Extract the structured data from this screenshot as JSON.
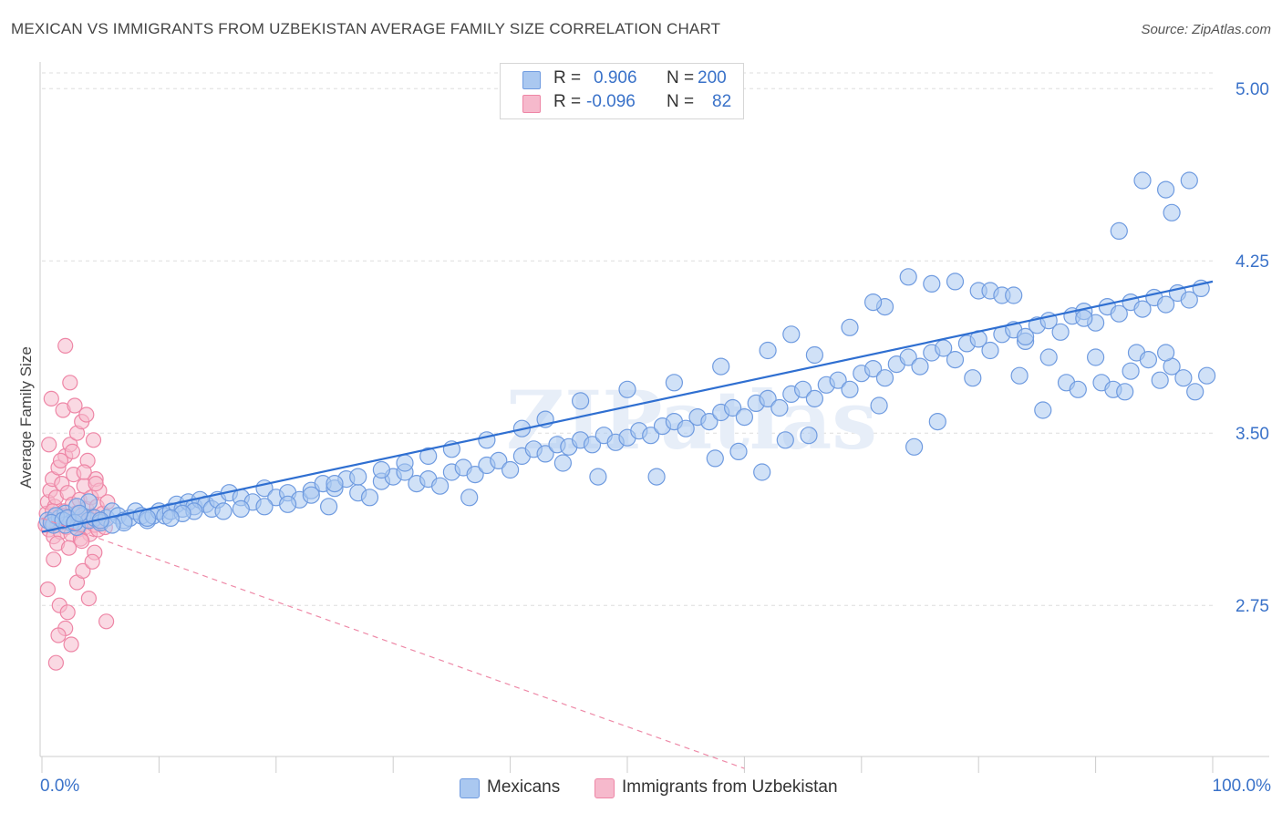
{
  "title": "MEXICAN VS IMMIGRANTS FROM UZBEKISTAN AVERAGE FAMILY SIZE CORRELATION CHART",
  "source": "Source: ZipAtlas.com",
  "watermark": "ZIPatlas",
  "colors": {
    "blue_fill": "#aac8f0",
    "blue_stroke": "#6f9be0",
    "blue_line": "#2f6fd1",
    "pink_fill": "#f6b9cc",
    "pink_stroke": "#ee86a6",
    "pink_line": "#ee8aa8",
    "axis_text": "#3a72c9",
    "grid": "#dddddd"
  },
  "legend": {
    "rows": [
      {
        "r_label": "R =",
        "r_value": "0.906",
        "n_label": "N =",
        "n_value": "200",
        "color": "#aac8f0"
      },
      {
        "r_label": "R =",
        "r_value": "-0.096",
        "n_label": "N =",
        "n_value": "82",
        "color": "#f6b9cc"
      }
    ],
    "series": [
      {
        "label": "Mexicans",
        "color": "#aac8f0"
      },
      {
        "label": "Immigrants from Uzbekistan",
        "color": "#f6b9cc"
      }
    ]
  },
  "chart_data": {
    "type": "scatter",
    "ylabel": "Average Family Size",
    "xlim": [
      0,
      100
    ],
    "ylim": [
      2.1,
      5.1
    ],
    "x_tick_labels": [
      {
        "value": 0,
        "label": "0.0%"
      },
      {
        "value": 100,
        "label": "100.0%"
      }
    ],
    "y_ticks": [
      {
        "value": 2.75,
        "label": "2.75"
      },
      {
        "value": 3.5,
        "label": "3.50"
      },
      {
        "value": 4.25,
        "label": "4.25"
      },
      {
        "value": 5.0,
        "label": "5.00"
      }
    ],
    "grid": true,
    "series": [
      {
        "name": "Mexicans",
        "trend": {
          "x": [
            0,
            100
          ],
          "y": [
            3.07,
            4.16
          ],
          "style": "solid"
        },
        "points": [
          [
            0.5,
            3.12
          ],
          [
            1,
            3.1
          ],
          [
            1.5,
            3.13
          ],
          [
            2,
            3.15
          ],
          [
            2.5,
            3.11
          ],
          [
            3,
            3.09
          ],
          [
            3.5,
            3.14
          ],
          [
            4,
            3.12
          ],
          [
            4.5,
            3.13
          ],
          [
            5,
            3.11
          ],
          [
            5.5,
            3.13
          ],
          [
            6,
            3.16
          ],
          [
            6.5,
            3.14
          ],
          [
            7,
            3.12
          ],
          [
            7.5,
            3.13
          ],
          [
            8,
            3.16
          ],
          [
            8.5,
            3.14
          ],
          [
            9,
            3.12
          ],
          [
            9.5,
            3.14
          ],
          [
            10,
            3.16
          ],
          [
            10.5,
            3.14
          ],
          [
            11,
            3.16
          ],
          [
            11.5,
            3.19
          ],
          [
            12,
            3.17
          ],
          [
            12.5,
            3.2
          ],
          [
            13,
            3.18
          ],
          [
            13.5,
            3.21
          ],
          [
            14,
            3.19
          ],
          [
            14.5,
            3.17
          ],
          [
            15,
            3.21
          ],
          [
            16,
            3.24
          ],
          [
            17,
            3.22
          ],
          [
            18,
            3.2
          ],
          [
            19,
            3.26
          ],
          [
            20,
            3.22
          ],
          [
            21,
            3.24
          ],
          [
            22,
            3.21
          ],
          [
            23,
            3.25
          ],
          [
            24,
            3.28
          ],
          [
            25,
            3.26
          ],
          [
            26,
            3.3
          ],
          [
            27,
            3.24
          ],
          [
            28,
            3.22
          ],
          [
            29,
            3.29
          ],
          [
            30,
            3.31
          ],
          [
            31,
            3.33
          ],
          [
            32,
            3.28
          ],
          [
            33,
            3.3
          ],
          [
            34,
            3.27
          ],
          [
            35,
            3.33
          ],
          [
            36,
            3.35
          ],
          [
            37,
            3.32
          ],
          [
            38,
            3.36
          ],
          [
            39,
            3.38
          ],
          [
            40,
            3.34
          ],
          [
            41,
            3.4
          ],
          [
            42,
            3.43
          ],
          [
            43,
            3.41
          ],
          [
            44,
            3.45
          ],
          [
            45,
            3.44
          ],
          [
            46,
            3.47
          ],
          [
            47,
            3.45
          ],
          [
            48,
            3.49
          ],
          [
            49,
            3.46
          ],
          [
            50,
            3.48
          ],
          [
            51,
            3.51
          ],
          [
            52,
            3.49
          ],
          [
            53,
            3.53
          ],
          [
            54,
            3.55
          ],
          [
            55,
            3.52
          ],
          [
            56,
            3.57
          ],
          [
            57,
            3.55
          ],
          [
            58,
            3.59
          ],
          [
            59,
            3.61
          ],
          [
            60,
            3.57
          ],
          [
            61,
            3.63
          ],
          [
            62,
            3.65
          ],
          [
            63,
            3.61
          ],
          [
            64,
            3.67
          ],
          [
            65,
            3.69
          ],
          [
            66,
            3.65
          ],
          [
            67,
            3.71
          ],
          [
            68,
            3.73
          ],
          [
            69,
            3.69
          ],
          [
            70,
            3.76
          ],
          [
            71,
            3.78
          ],
          [
            72,
            3.74
          ],
          [
            73,
            3.8
          ],
          [
            74,
            3.83
          ],
          [
            75,
            3.79
          ],
          [
            76,
            3.85
          ],
          [
            77,
            3.87
          ],
          [
            78,
            3.82
          ],
          [
            79,
            3.89
          ],
          [
            80,
            3.91
          ],
          [
            81,
            3.86
          ],
          [
            82,
            3.93
          ],
          [
            83,
            3.95
          ],
          [
            84,
            3.9
          ],
          [
            85,
            3.97
          ],
          [
            86,
            3.99
          ],
          [
            87,
            3.94
          ],
          [
            88,
            4.01
          ],
          [
            89,
            4.03
          ],
          [
            90,
            3.98
          ],
          [
            91,
            4.05
          ],
          [
            92,
            4.02
          ],
          [
            93,
            4.07
          ],
          [
            94,
            4.04
          ],
          [
            95,
            4.09
          ],
          [
            96,
            4.06
          ],
          [
            97,
            4.11
          ],
          [
            98,
            4.08
          ],
          [
            99,
            4.13
          ],
          [
            15.5,
            3.16
          ],
          [
            36.5,
            3.22
          ],
          [
            47.5,
            3.31
          ],
          [
            57.5,
            3.39
          ],
          [
            59.5,
            3.42
          ],
          [
            63.5,
            3.47
          ],
          [
            65.5,
            3.49
          ],
          [
            71.5,
            3.62
          ],
          [
            74.5,
            3.44
          ],
          [
            76.5,
            3.55
          ],
          [
            79.5,
            3.74
          ],
          [
            83.5,
            3.75
          ],
          [
            85.5,
            3.6
          ],
          [
            87.5,
            3.72
          ],
          [
            88.5,
            3.69
          ],
          [
            90.5,
            3.72
          ],
          [
            91.5,
            3.69
          ],
          [
            92.5,
            3.68
          ],
          [
            93.5,
            3.85
          ],
          [
            94.5,
            3.82
          ],
          [
            95.5,
            3.73
          ],
          [
            96.5,
            3.79
          ],
          [
            97.5,
            3.74
          ],
          [
            98.5,
            3.68
          ],
          [
            99.5,
            3.75
          ],
          [
            96,
            3.85
          ],
          [
            94,
            4.6
          ],
          [
            96,
            4.56
          ],
          [
            96.5,
            4.46
          ],
          [
            98,
            4.6
          ],
          [
            92,
            4.38
          ],
          [
            89,
            4.0
          ],
          [
            90,
            3.83
          ],
          [
            93,
            3.77
          ],
          [
            84,
            3.92
          ],
          [
            86,
            3.83
          ],
          [
            80,
            4.12
          ],
          [
            81,
            4.12
          ],
          [
            82,
            4.1
          ],
          [
            83,
            4.1
          ],
          [
            74,
            4.18
          ],
          [
            76,
            4.15
          ],
          [
            78,
            4.16
          ],
          [
            72,
            4.05
          ],
          [
            71,
            4.07
          ],
          [
            69,
            3.96
          ],
          [
            66,
            3.84
          ],
          [
            64,
            3.93
          ],
          [
            62,
            3.86
          ],
          [
            58,
            3.79
          ],
          [
            54,
            3.72
          ],
          [
            50,
            3.69
          ],
          [
            46,
            3.64
          ],
          [
            43,
            3.56
          ],
          [
            41,
            3.52
          ],
          [
            38,
            3.47
          ],
          [
            35,
            3.43
          ],
          [
            33,
            3.4
          ],
          [
            31,
            3.37
          ],
          [
            29,
            3.34
          ],
          [
            27,
            3.31
          ],
          [
            25,
            3.28
          ],
          [
            23,
            3.23
          ],
          [
            21,
            3.19
          ],
          [
            19,
            3.18
          ],
          [
            17,
            3.17
          ],
          [
            13,
            3.16
          ],
          [
            12,
            3.15
          ],
          [
            11,
            3.13
          ],
          [
            9,
            3.13
          ],
          [
            7,
            3.11
          ],
          [
            6,
            3.1
          ],
          [
            5,
            3.12
          ],
          [
            4,
            3.2
          ],
          [
            3,
            3.18
          ],
          [
            2,
            3.1
          ],
          [
            1.2,
            3.14
          ],
          [
            0.8,
            3.11
          ],
          [
            1.8,
            3.12
          ],
          [
            2.2,
            3.13
          ],
          [
            2.8,
            3.11
          ],
          [
            3.2,
            3.15
          ],
          [
            24.5,
            3.18
          ],
          [
            44.5,
            3.37
          ],
          [
            52.5,
            3.31
          ],
          [
            61.5,
            3.33
          ]
        ]
      },
      {
        "name": "Immigrants from Uzbekistan",
        "trend": {
          "x": [
            0,
            60
          ],
          "y": [
            3.13,
            2.04
          ],
          "style": "dashed"
        },
        "points": [
          [
            0.3,
            3.1
          ],
          [
            0.4,
            3.15
          ],
          [
            0.5,
            3.2
          ],
          [
            0.6,
            3.08
          ],
          [
            0.7,
            3.25
          ],
          [
            0.8,
            3.12
          ],
          [
            0.9,
            3.3
          ],
          [
            1.0,
            3.05
          ],
          [
            1.1,
            3.18
          ],
          [
            1.2,
            3.22
          ],
          [
            1.3,
            3.1
          ],
          [
            1.4,
            3.35
          ],
          [
            1.5,
            3.14
          ],
          [
            1.6,
            3.07
          ],
          [
            1.7,
            3.28
          ],
          [
            1.8,
            3.12
          ],
          [
            1.9,
            3.16
          ],
          [
            2.0,
            3.4
          ],
          [
            2.1,
            3.09
          ],
          [
            2.2,
            3.24
          ],
          [
            2.3,
            3.13
          ],
          [
            2.4,
            3.45
          ],
          [
            2.5,
            3.06
          ],
          [
            2.6,
            3.19
          ],
          [
            2.7,
            3.32
          ],
          [
            2.8,
            3.11
          ],
          [
            2.9,
            3.15
          ],
          [
            3.0,
            3.5
          ],
          [
            3.1,
            3.08
          ],
          [
            3.2,
            3.21
          ],
          [
            3.3,
            3.1
          ],
          [
            3.4,
            3.55
          ],
          [
            3.5,
            3.13
          ],
          [
            3.6,
            3.27
          ],
          [
            3.7,
            3.09
          ],
          [
            3.8,
            3.17
          ],
          [
            3.9,
            3.38
          ],
          [
            4.0,
            3.12
          ],
          [
            4.1,
            3.06
          ],
          [
            4.2,
            3.22
          ],
          [
            4.3,
            3.14
          ],
          [
            4.4,
            3.47
          ],
          [
            4.5,
            3.1
          ],
          [
            4.6,
            3.3
          ],
          [
            4.7,
            3.18
          ],
          [
            4.8,
            3.08
          ],
          [
            4.9,
            3.25
          ],
          [
            5.0,
            3.12
          ],
          [
            5.2,
            3.15
          ],
          [
            5.4,
            3.09
          ],
          [
            0.5,
            2.82
          ],
          [
            1.0,
            2.95
          ],
          [
            1.5,
            2.75
          ],
          [
            2.0,
            2.65
          ],
          [
            2.5,
            2.58
          ],
          [
            3.0,
            2.85
          ],
          [
            3.5,
            2.9
          ],
          [
            4.0,
            2.78
          ],
          [
            1.2,
            2.5
          ],
          [
            2.2,
            2.72
          ],
          [
            0.8,
            3.65
          ],
          [
            1.8,
            3.6
          ],
          [
            2.8,
            3.62
          ],
          [
            3.8,
            3.58
          ],
          [
            4.5,
            2.98
          ],
          [
            5.5,
            2.68
          ],
          [
            1.3,
            3.02
          ],
          [
            2.3,
            3.0
          ],
          [
            3.3,
            3.04
          ],
          [
            4.3,
            2.94
          ],
          [
            2.0,
            3.88
          ],
          [
            0.6,
            3.45
          ],
          [
            1.6,
            3.38
          ],
          [
            2.6,
            3.42
          ],
          [
            3.6,
            3.33
          ],
          [
            4.6,
            3.28
          ],
          [
            5.6,
            3.2
          ],
          [
            1.4,
            2.62
          ],
          [
            2.4,
            3.72
          ],
          [
            3.4,
            3.03
          ],
          [
            0.9,
            3.16
          ],
          [
            1.9,
            3.14
          ]
        ]
      }
    ]
  }
}
